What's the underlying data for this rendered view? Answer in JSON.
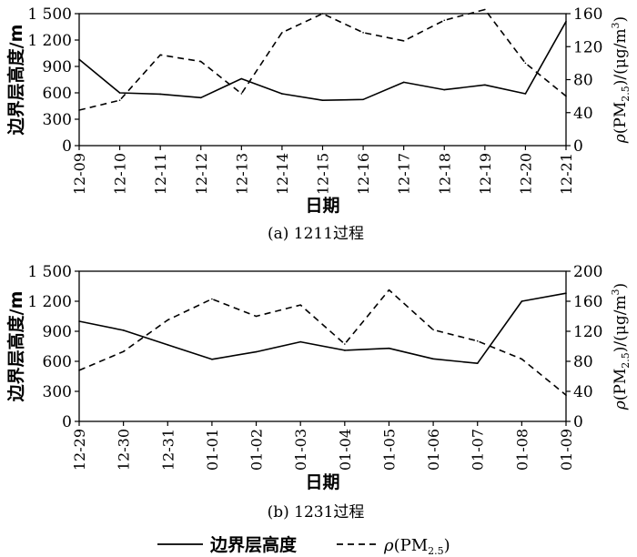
{
  "chart_data": [
    {
      "type": "line",
      "caption": "(a)  1211过程",
      "xlabel": "日期",
      "ylabel": "边界层高度/m",
      "y2label": "ρ(PM2.5)/(μg/m3)",
      "x": [
        "12-09",
        "12-10",
        "12-11",
        "12-12",
        "12-13",
        "12-14",
        "12-15",
        "12-16",
        "12-17",
        "12-18",
        "12-19",
        "12-20",
        "12-21"
      ],
      "ylim": [
        0,
        1500
      ],
      "y_ticks": [
        "0",
        "300",
        "600",
        "900",
        "1 200",
        "1 500"
      ],
      "y2lim": [
        0,
        160
      ],
      "y2_ticks": [
        "0",
        "40",
        "80",
        "120",
        "160"
      ],
      "series": [
        {
          "name": "边界层高度",
          "axis": "left",
          "style": "solid",
          "values": [
            980,
            600,
            585,
            545,
            760,
            590,
            515,
            525,
            720,
            635,
            690,
            590,
            1410
          ]
        },
        {
          "name": "ρ(PM2.5)",
          "axis": "right",
          "style": "dashed",
          "values": [
            43,
            55,
            110,
            102,
            63,
            137,
            160,
            137,
            127,
            152,
            165,
            100,
            60
          ]
        }
      ],
      "grid": false
    },
    {
      "type": "line",
      "caption": "(b)  1231过程",
      "xlabel": "日期",
      "ylabel": "边界层高度/m",
      "y2label": "ρ(PM2.5)/(μg/m3)",
      "x": [
        "12-29",
        "12-30",
        "12-31",
        "01-01",
        "01-02",
        "01-03",
        "01-04",
        "01-05",
        "01-06",
        "01-07",
        "01-08",
        "01-09"
      ],
      "ylim": [
        0,
        1500
      ],
      "y_ticks": [
        "0",
        "300",
        "600",
        "900",
        "1 200",
        "1 500"
      ],
      "y2lim": [
        0,
        200
      ],
      "y2_ticks": [
        "0",
        "40",
        "80",
        "120",
        "160",
        "200"
      ],
      "series": [
        {
          "name": "边界层高度",
          "axis": "left",
          "style": "solid",
          "values": [
            1000,
            910,
            765,
            620,
            695,
            795,
            710,
            730,
            625,
            580,
            1200,
            1280
          ]
        },
        {
          "name": "ρ(PM2.5)",
          "axis": "right",
          "style": "dashed",
          "values": [
            68,
            93,
            135,
            163,
            140,
            155,
            103,
            175,
            122,
            107,
            83,
            35
          ]
        }
      ],
      "grid": false
    }
  ],
  "legend": {
    "items": [
      {
        "label": "边界层高度",
        "style": "solid"
      },
      {
        "label": "ρ(PM2.5)",
        "style": "dashed"
      }
    ],
    "placement": "bottom-center"
  }
}
